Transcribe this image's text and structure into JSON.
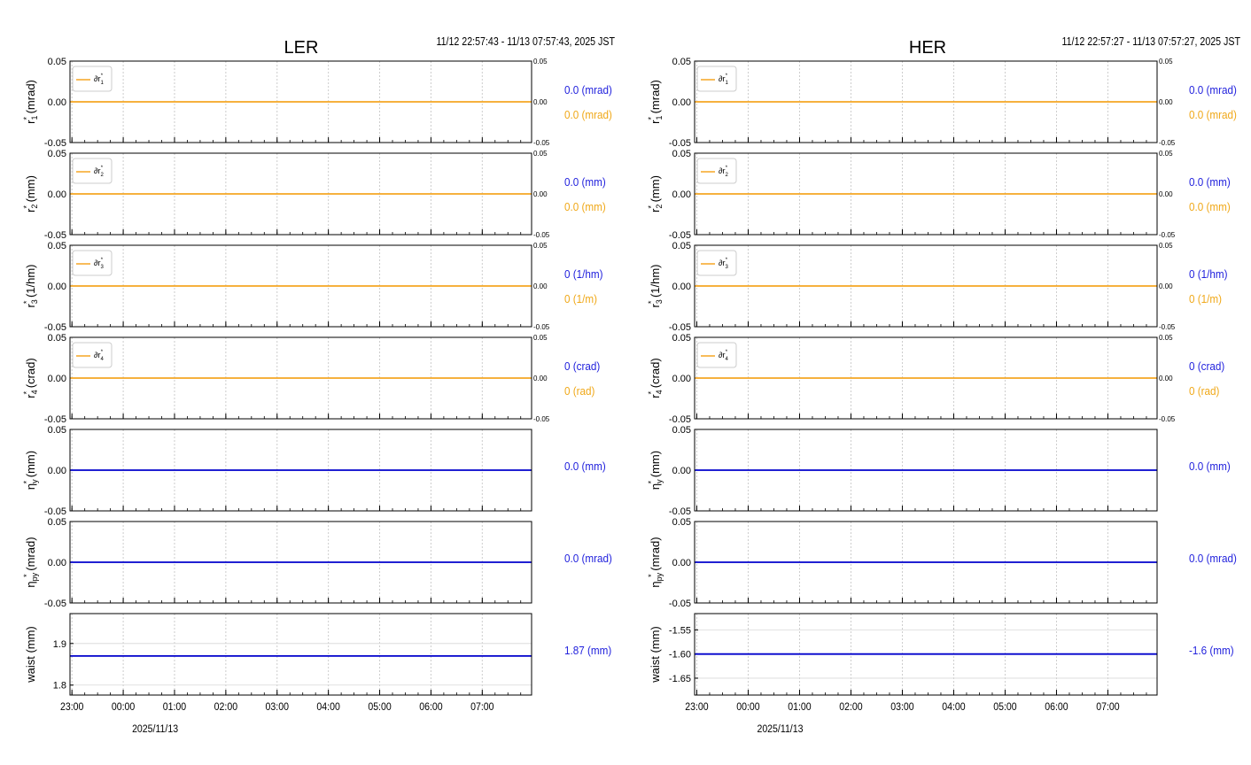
{
  "colors": {
    "rvalue": "#2222dd",
    "ivalue": "#f0a818",
    "line_main": "#0000cc",
    "line_diff": "#f5a623"
  },
  "chart_data": [
    {
      "type": "line",
      "title": "LER",
      "time_range": "11/12 22:57:43 - 11/13 07:57:43, 2025 JST",
      "x_ticks": [
        "23:00",
        "00:00",
        "01:00",
        "02:00",
        "03:00",
        "04:00",
        "05:00",
        "06:00",
        "07:00"
      ],
      "x_sublabel": "2025/11/13",
      "x_range": [
        "22:57:43",
        "07:57:43"
      ],
      "panels": [
        {
          "ylabel": "r₁* (mrad)",
          "ylim": [
            -0.05,
            0.05
          ],
          "yticks": [
            "0.05",
            "0.00",
            "-0.05"
          ],
          "right_yticks": [
            "0.05",
            "0.00",
            "-0.05"
          ],
          "legend": "∂r₁*",
          "series": [
            {
              "kind": "diff",
              "values": [
                0,
                0
              ]
            }
          ],
          "value_main": "0.0 (mrad)",
          "value_diff": "0.0 (mrad)"
        },
        {
          "ylabel": "r₂* (mm)",
          "ylim": [
            -0.05,
            0.05
          ],
          "yticks": [
            "0.05",
            "0.00",
            "-0.05"
          ],
          "right_yticks": [
            "0.05",
            "0.00",
            "-0.05"
          ],
          "legend": "∂r₂*",
          "series": [
            {
              "kind": "diff",
              "values": [
                0,
                0
              ]
            }
          ],
          "value_main": "0.0 (mm)",
          "value_diff": "0.0 (mm)"
        },
        {
          "ylabel": "r₃* (1/hm)",
          "ylim": [
            -0.05,
            0.05
          ],
          "yticks": [
            "0.05",
            "0.00",
            "-0.05"
          ],
          "right_yticks": [
            "0.05",
            "0.00",
            "-0.05"
          ],
          "legend": "∂r₃*",
          "series": [
            {
              "kind": "diff",
              "values": [
                0,
                0
              ]
            }
          ],
          "value_main": "0 (1/hm)",
          "value_diff": "0 (1/m)"
        },
        {
          "ylabel": "r₄* (crad)",
          "ylim": [
            -0.05,
            0.05
          ],
          "yticks": [
            "0.05",
            "0.00",
            "-0.05"
          ],
          "right_yticks": [
            "0.05",
            "0.00",
            "-0.05"
          ],
          "legend": "∂r₄*",
          "series": [
            {
              "kind": "diff",
              "values": [
                0,
                0
              ]
            }
          ],
          "value_main": "0 (crad)",
          "value_diff": "0 (rad)"
        },
        {
          "ylabel": "ηy* (mm)",
          "ylim": [
            -0.05,
            0.05
          ],
          "yticks": [
            "0.05",
            "0.00",
            "-0.05"
          ],
          "series": [
            {
              "kind": "main",
              "values": [
                0,
                0
              ]
            }
          ],
          "value_main": "0.0 (mm)"
        },
        {
          "ylabel": "ηpy* (mrad)",
          "ylim": [
            -0.05,
            0.05
          ],
          "yticks": [
            "0.05",
            "0.00",
            "-0.05"
          ],
          "series": [
            {
              "kind": "main",
              "values": [
                0,
                0
              ]
            }
          ],
          "value_main": "0.0 (mrad)"
        },
        {
          "ylabel": "waist (mm)",
          "ylim": [
            1.776,
            1.972
          ],
          "yticks": [
            "1.9",
            "1.8"
          ],
          "ytick_values": [
            1.9,
            1.8
          ],
          "series": [
            {
              "kind": "main",
              "values": [
                1.87,
                1.87
              ]
            }
          ],
          "value_main": "1.87 (mm)"
        }
      ]
    },
    {
      "type": "line",
      "title": "HER",
      "time_range": "11/12 22:57:27 - 11/13 07:57:27, 2025 JST",
      "x_ticks": [
        "23:00",
        "00:00",
        "01:00",
        "02:00",
        "03:00",
        "04:00",
        "05:00",
        "06:00",
        "07:00"
      ],
      "x_sublabel": "2025/11/13",
      "x_range": [
        "22:57:27",
        "07:57:27"
      ],
      "panels": [
        {
          "ylabel": "r₁* (mrad)",
          "ylim": [
            -0.05,
            0.05
          ],
          "yticks": [
            "0.05",
            "0.00",
            "-0.05"
          ],
          "right_yticks": [
            "0.05",
            "0.00",
            "-0.05"
          ],
          "legend": "∂r₁*",
          "series": [
            {
              "kind": "diff",
              "values": [
                0,
                0
              ]
            }
          ],
          "value_main": "0.0 (mrad)",
          "value_diff": "0.0 (mrad)"
        },
        {
          "ylabel": "r₂* (mm)",
          "ylim": [
            -0.05,
            0.05
          ],
          "yticks": [
            "0.05",
            "0.00",
            "-0.05"
          ],
          "right_yticks": [
            "0.05",
            "0.00",
            "-0.05"
          ],
          "legend": "∂r₂*",
          "series": [
            {
              "kind": "diff",
              "values": [
                0,
                0
              ]
            }
          ],
          "value_main": "0.0 (mm)",
          "value_diff": "0.0 (mm)"
        },
        {
          "ylabel": "r₃* (1/hm)",
          "ylim": [
            -0.05,
            0.05
          ],
          "yticks": [
            "0.05",
            "0.00",
            "-0.05"
          ],
          "right_yticks": [
            "0.05",
            "0.00",
            "-0.05"
          ],
          "legend": "∂r₃*",
          "series": [
            {
              "kind": "diff",
              "values": [
                0,
                0
              ]
            }
          ],
          "value_main": "0 (1/hm)",
          "value_diff": "0 (1/m)"
        },
        {
          "ylabel": "r₄* (crad)",
          "ylim": [
            -0.05,
            0.05
          ],
          "yticks": [
            "0.05",
            "0.00",
            "-0.05"
          ],
          "right_yticks": [
            "0.05",
            "0.00",
            "-0.05"
          ],
          "legend": "∂r₄*",
          "series": [
            {
              "kind": "diff",
              "values": [
                0,
                0
              ]
            }
          ],
          "value_main": "0 (crad)",
          "value_diff": "0 (rad)"
        },
        {
          "ylabel": "ηy* (mm)",
          "ylim": [
            -0.05,
            0.05
          ],
          "yticks": [
            "0.05",
            "0.00",
            "-0.05"
          ],
          "series": [
            {
              "kind": "main",
              "values": [
                0,
                0
              ]
            }
          ],
          "value_main": "0.0 (mm)"
        },
        {
          "ylabel": "ηpy* (mrad)",
          "ylim": [
            -0.05,
            0.05
          ],
          "yticks": [
            "0.05",
            "0.00",
            "-0.05"
          ],
          "series": [
            {
              "kind": "main",
              "values": [
                0,
                0
              ]
            }
          ],
          "value_main": "0.0 (mrad)"
        },
        {
          "ylabel": "waist (mm)",
          "ylim": [
            -1.685,
            -1.516
          ],
          "yticks": [
            "-1.55",
            "-1.60",
            "-1.65"
          ],
          "ytick_values": [
            -1.55,
            -1.6,
            -1.65
          ],
          "series": [
            {
              "kind": "main",
              "values": [
                -1.6,
                -1.6
              ]
            }
          ],
          "value_main": "-1.6 (mm)"
        }
      ]
    }
  ]
}
